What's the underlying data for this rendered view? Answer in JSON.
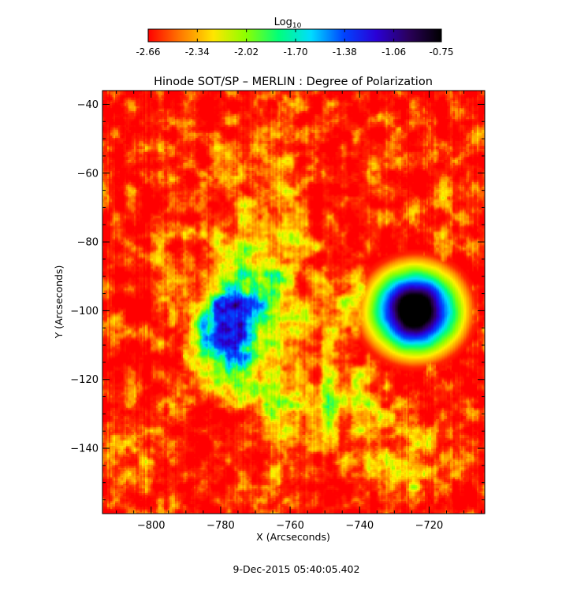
{
  "colorbar": {
    "label_main": "Log",
    "label_sub": "10",
    "ticks": [
      "-2.66",
      "-2.34",
      "-2.02",
      "-1.70",
      "-1.38",
      "-1.06",
      "-0.75"
    ],
    "range": [
      -2.66,
      -0.75
    ],
    "colors": [
      "#ff0000",
      "#ff7a00",
      "#ffe600",
      "#8cff00",
      "#00ff7a",
      "#00dcff",
      "#0044ff",
      "#2a00d6",
      "#2a005a",
      "#000000"
    ]
  },
  "chart_data": {
    "type": "heatmap",
    "title": "Hinode SOT/SP – MERLIN : Degree of Polarization",
    "xlabel": "X (Arcseconds)",
    "ylabel": "Y (Arcseconds)",
    "xlim": [
      -814,
      -704
    ],
    "ylim": [
      -159,
      -36
    ],
    "xticks": [
      -800,
      -780,
      -760,
      -740,
      -720
    ],
    "yticks": [
      -40,
      -60,
      -80,
      -100,
      -120,
      -140
    ],
    "value_units": "log10 degree of polarization",
    "value_range": [
      -2.66,
      -0.75
    ],
    "features": [
      {
        "type": "sunspot",
        "x": -724,
        "y": -100,
        "log_value": -0.8
      },
      {
        "type": "plage",
        "x": -778,
        "y": -108,
        "log_value": -1.1
      }
    ]
  },
  "footer": {
    "timestamp": "9-Dec-2015 05:40:05.402"
  }
}
